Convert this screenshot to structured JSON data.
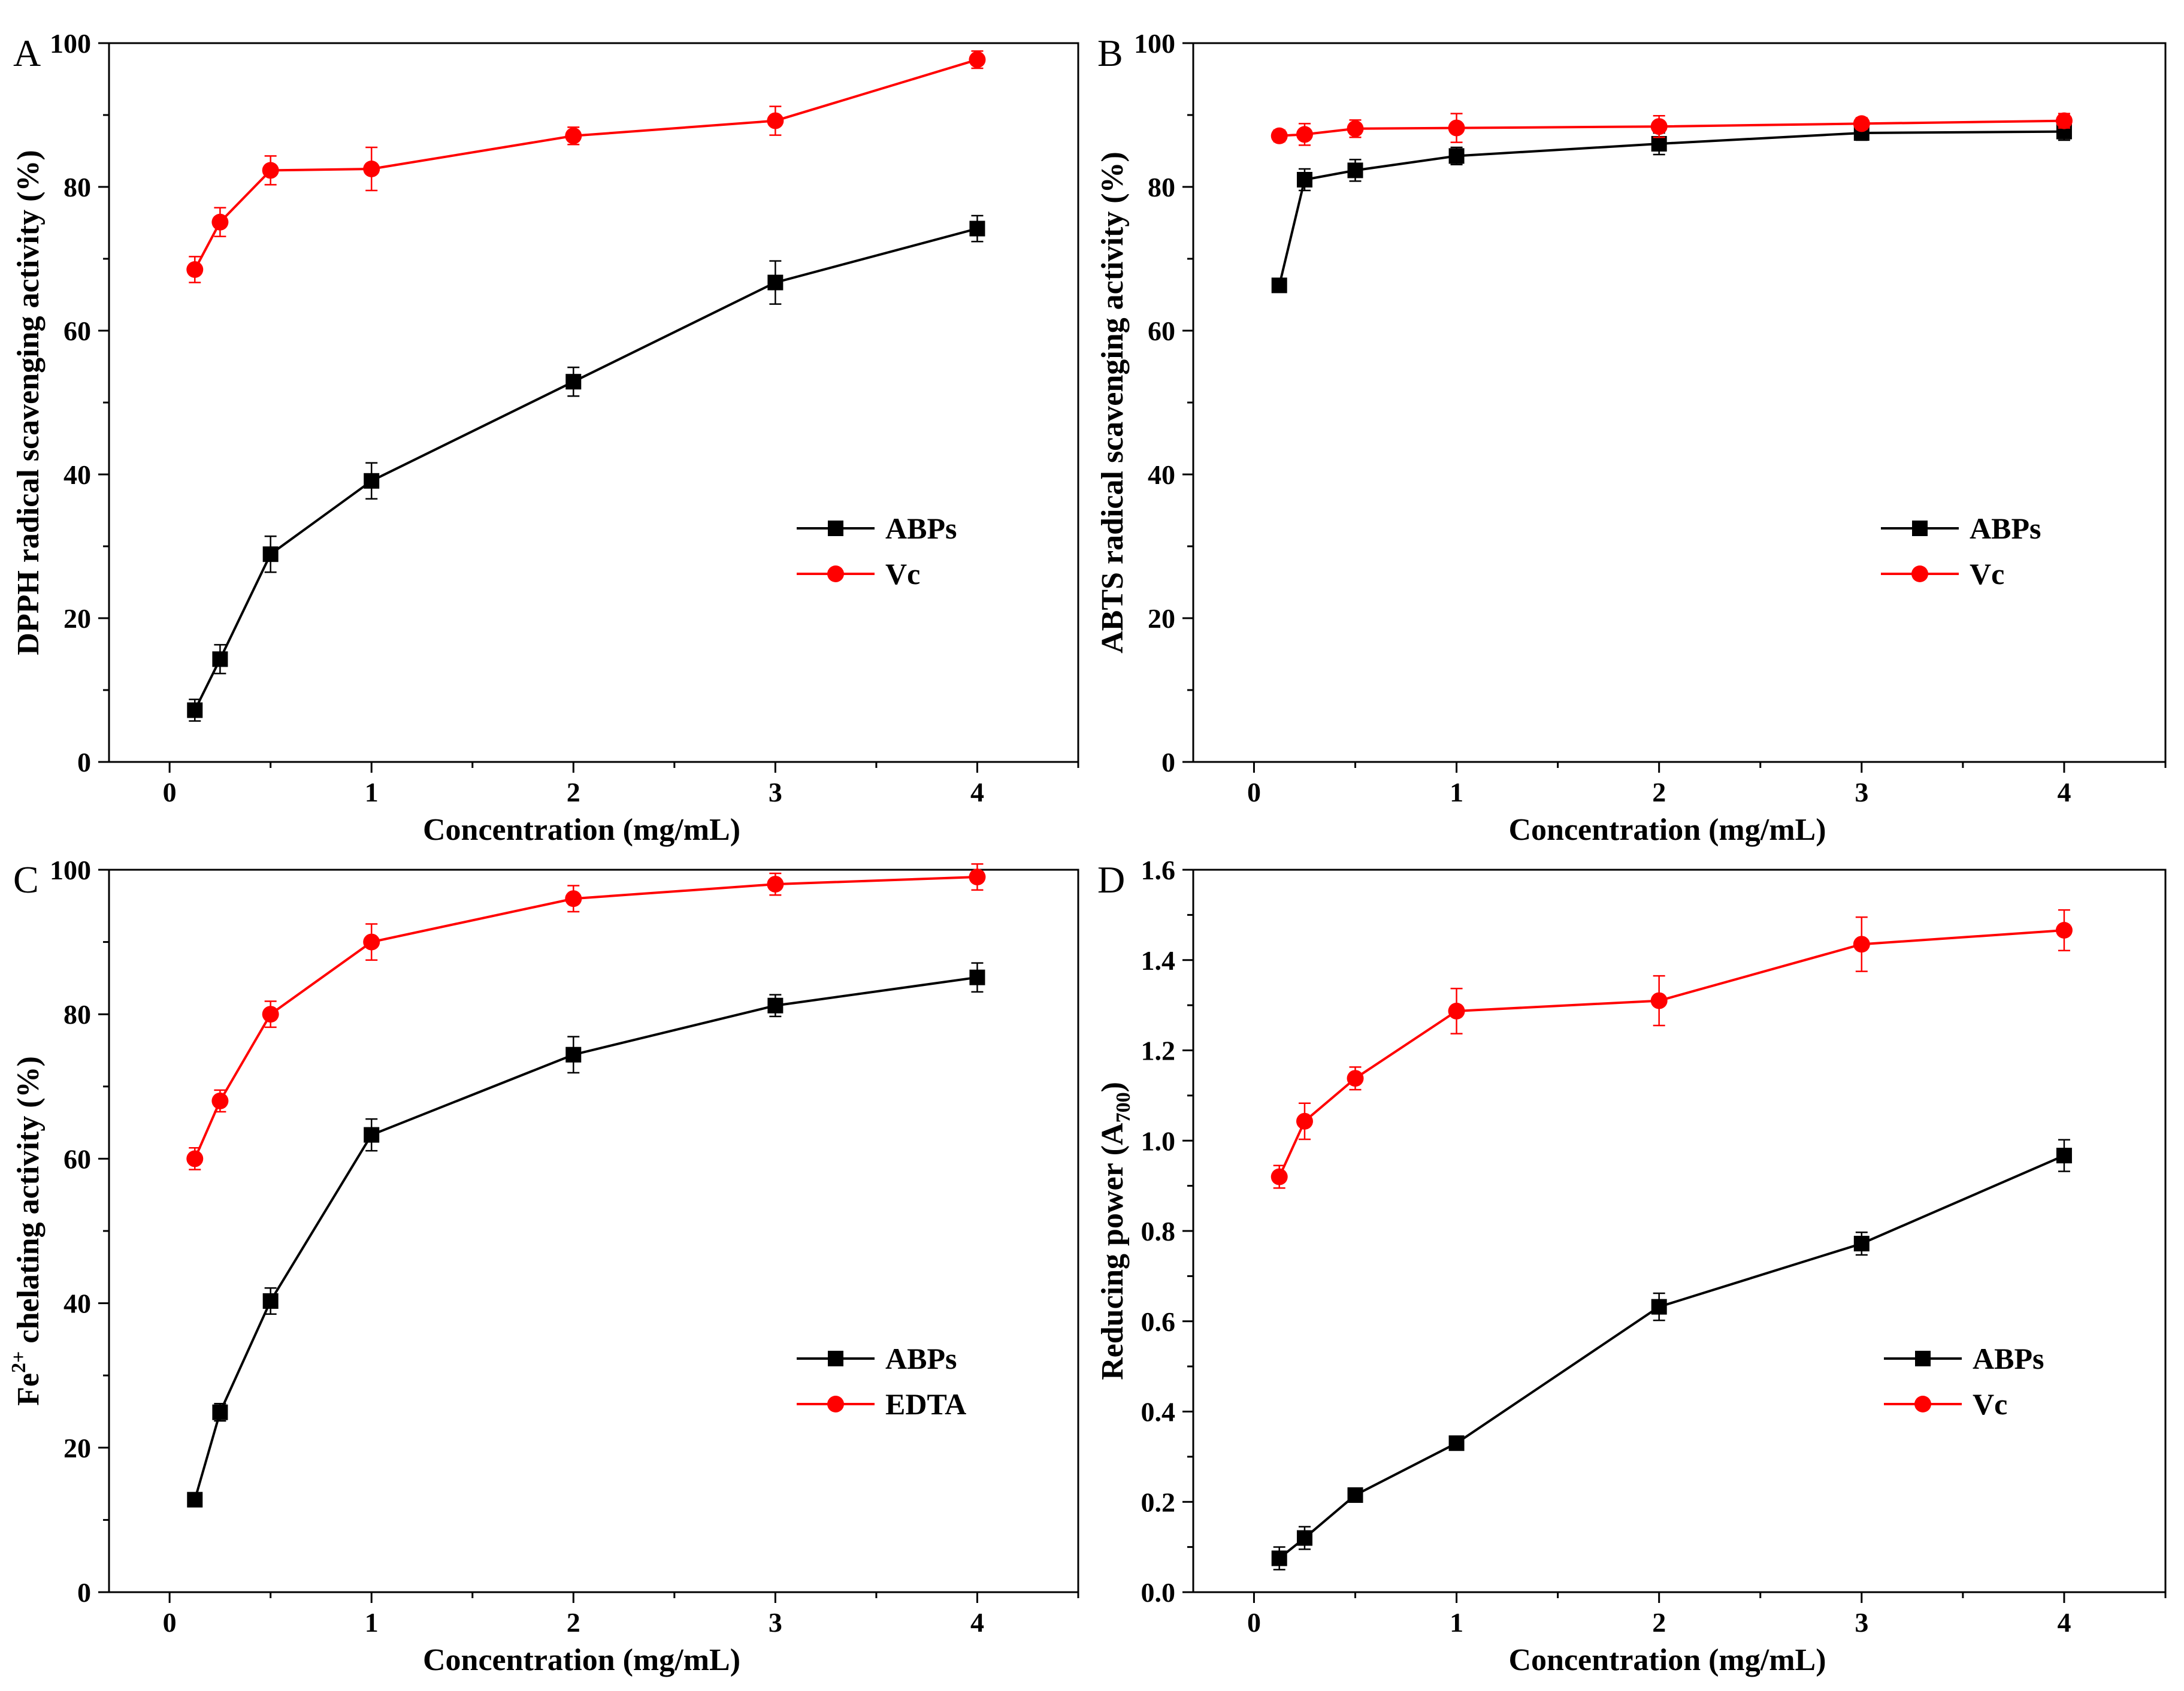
{
  "figure": {
    "colors": {
      "abps": "#000000",
      "vc": "#ff0000",
      "axis": "#000000"
    }
  },
  "chart_data": [
    {
      "id": "A",
      "panel_label": "A",
      "type": "line",
      "xlabel": "Concentration (mg/mL)",
      "ylabel": "DPPH radical scavenging activity (%)",
      "xlim": [
        -0.3,
        4.5
      ],
      "ylim": [
        0,
        100
      ],
      "xticks": [
        0,
        1,
        2,
        3,
        4
      ],
      "yticks": [
        0,
        20,
        40,
        60,
        80,
        100
      ],
      "ytick_labels": [
        "0",
        "20",
        "40",
        "60",
        "80",
        "100"
      ],
      "legend_position": "center-right",
      "series": [
        {
          "name": "ABPs",
          "color": "#000000",
          "marker": "square",
          "x": [
            0.125,
            0.25,
            0.5,
            1,
            2,
            3,
            4
          ],
          "y": [
            7.2,
            14.3,
            28.9,
            39.1,
            52.9,
            66.7,
            74.2
          ],
          "err": [
            1.5,
            2.0,
            2.5,
            2.5,
            2.0,
            3.0,
            1.8
          ]
        },
        {
          "name": "Vc",
          "color": "#ff0000",
          "marker": "circle",
          "x": [
            0.125,
            0.25,
            0.5,
            1,
            2,
            3,
            4
          ],
          "y": [
            68.5,
            75.1,
            82.3,
            82.5,
            87.1,
            89.2,
            97.7
          ],
          "err": [
            1.8,
            2.0,
            2.0,
            3.0,
            1.2,
            2.0,
            1.2
          ]
        }
      ]
    },
    {
      "id": "B",
      "panel_label": "B",
      "type": "line",
      "xlabel": "Concentration (mg/mL)",
      "ylabel": "ABTS radical scavenging activity (%)",
      "xlim": [
        -0.3,
        4.5
      ],
      "ylim": [
        0,
        100
      ],
      "xticks": [
        0,
        1,
        2,
        3,
        4
      ],
      "yticks": [
        0,
        20,
        40,
        60,
        80,
        100
      ],
      "ytick_labels": [
        "0",
        "20",
        "40",
        "60",
        "80",
        "100"
      ],
      "legend_position": "center-right",
      "series": [
        {
          "name": "ABPs",
          "color": "#000000",
          "marker": "square",
          "x": [
            0.125,
            0.25,
            0.5,
            1,
            2,
            3,
            4
          ],
          "y": [
            66.3,
            81.0,
            82.3,
            84.3,
            86.0,
            87.5,
            87.7
          ],
          "err": [
            0.8,
            1.5,
            1.5,
            1.2,
            1.5,
            1.0,
            1.2
          ]
        },
        {
          "name": "Vc",
          "color": "#ff0000",
          "marker": "circle",
          "x": [
            0.125,
            0.25,
            0.5,
            1,
            2,
            3,
            4
          ],
          "y": [
            87.1,
            87.3,
            88.1,
            88.2,
            88.4,
            88.8,
            89.2
          ],
          "err": [
            0.8,
            1.5,
            1.2,
            2.0,
            1.5,
            0.8,
            1.0
          ]
        }
      ]
    },
    {
      "id": "C",
      "panel_label": "C",
      "type": "line",
      "xlabel": "Concentration (mg/mL)",
      "ylabel": "chelating  activity (%)",
      "ylabel_prefix": "Fe",
      "ylabel_superscript": "2+",
      "xlim": [
        -0.3,
        4.5
      ],
      "ylim": [
        0,
        100
      ],
      "xticks": [
        0,
        1,
        2,
        3,
        4
      ],
      "yticks": [
        0,
        20,
        40,
        60,
        80,
        100
      ],
      "ytick_labels": [
        "0",
        "20",
        "40",
        "60",
        "80",
        "100"
      ],
      "legend_position": "bottom-right",
      "series": [
        {
          "name": "ABPs",
          "color": "#000000",
          "marker": "square",
          "x": [
            0.125,
            0.25,
            0.5,
            1,
            2,
            3,
            4
          ],
          "y": [
            12.8,
            24.9,
            40.3,
            63.3,
            74.4,
            81.2,
            85.1
          ],
          "err": [
            0.8,
            1.2,
            1.8,
            2.2,
            2.5,
            1.5,
            2.0
          ]
        },
        {
          "name": "EDTA",
          "color": "#ff0000",
          "marker": "circle",
          "x": [
            0.125,
            0.25,
            0.5,
            1,
            2,
            3,
            4
          ],
          "y": [
            60.0,
            68.0,
            80.0,
            90.0,
            96.0,
            98.0,
            99.0
          ],
          "err": [
            1.5,
            1.5,
            1.8,
            2.5,
            1.8,
            1.5,
            1.8
          ]
        }
      ]
    },
    {
      "id": "D",
      "panel_label": "D",
      "type": "line",
      "xlabel": "Concentration (mg/mL)",
      "ylabel": "Reducing power (A",
      "ylabel_subscript": "700",
      "ylabel_suffix": ")",
      "xlim": [
        -0.3,
        4.5
      ],
      "ylim": [
        0,
        1.6
      ],
      "xticks": [
        0,
        1,
        2,
        3,
        4
      ],
      "yticks": [
        0,
        0.2,
        0.4,
        0.6,
        0.8,
        1.0,
        1.2,
        1.4,
        1.6
      ],
      "ytick_labels": [
        "0.0",
        "0.2",
        "0.4",
        "0.6",
        "0.8",
        "1.0",
        "1.2",
        "1.4",
        "1.6"
      ],
      "legend_position": "bottom-right",
      "series": [
        {
          "name": "ABPs",
          "color": "#000000",
          "marker": "square",
          "x": [
            0.125,
            0.25,
            0.5,
            1,
            2,
            3,
            4
          ],
          "y": [
            0.075,
            0.12,
            0.215,
            0.33,
            0.632,
            0.772,
            0.967
          ],
          "err": [
            0.025,
            0.025,
            0.01,
            0.01,
            0.03,
            0.025,
            0.035
          ]
        },
        {
          "name": "Vc",
          "color": "#ff0000",
          "marker": "circle",
          "x": [
            0.125,
            0.25,
            0.5,
            1,
            2,
            3,
            4
          ],
          "y": [
            0.92,
            1.043,
            1.138,
            1.287,
            1.31,
            1.435,
            1.466
          ],
          "err": [
            0.025,
            0.04,
            0.025,
            0.05,
            0.055,
            0.06,
            0.045
          ]
        }
      ]
    }
  ]
}
